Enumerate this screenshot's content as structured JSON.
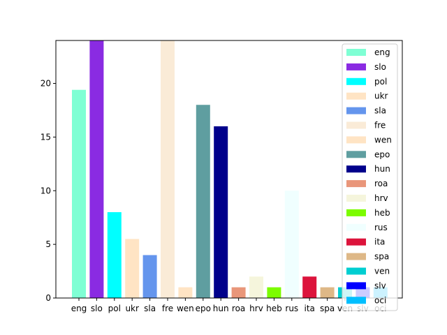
{
  "chart_data": {
    "type": "bar",
    "title": "",
    "xlabel": "",
    "ylabel": "",
    "categories": [
      "eng",
      "slo",
      "pol",
      "ukr",
      "sla",
      "fre",
      "wen",
      "epo",
      "hun",
      "roa",
      "hrv",
      "heb",
      "rus",
      "ita",
      "spa",
      "ven",
      "slv",
      "oci"
    ],
    "values": [
      19.4,
      24,
      8,
      5.5,
      4,
      24,
      1,
      18,
      16,
      1,
      2,
      1,
      10,
      2,
      1,
      1,
      1,
      1
    ],
    "colors": [
      "#7fffd4",
      "#8a2be2",
      "#00ffff",
      "#ffe4c4",
      "#6495ed",
      "#faebd7",
      "#ffe4c4",
      "#5f9ea0",
      "#00008b",
      "#e9967a",
      "#f5f5dc",
      "#7cfc00",
      "#f0ffff",
      "#dc143c",
      "#deb887",
      "#00ced1",
      "#0000ff",
      "#00bfff"
    ],
    "ylim": [
      0,
      24
    ],
    "yticks": [
      0,
      5,
      10,
      15,
      20
    ],
    "legend": {
      "placement": "top-right",
      "entries": [
        "eng",
        "slo",
        "pol",
        "ukr",
        "sla",
        "fre",
        "wen",
        "epo",
        "hun",
        "roa",
        "hrv",
        "heb",
        "rus",
        "ita",
        "spa",
        "ven",
        "slv",
        "oci"
      ]
    },
    "grid": false
  }
}
